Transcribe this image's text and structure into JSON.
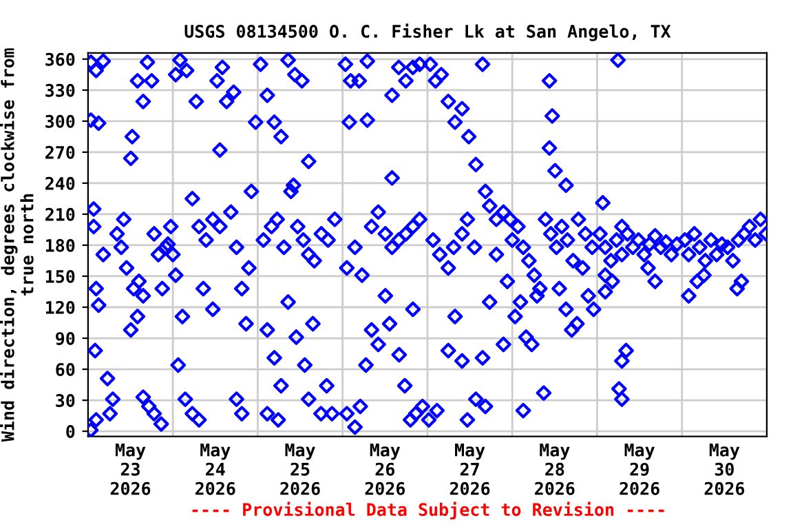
{
  "chart_data": {
    "type": "scatter",
    "title": "USGS 08134500 O. C. Fisher Lk at San Angelo, TX",
    "ylabel": "Wind direction, degrees clockwise from\ntrue north",
    "annotations": [
      "---- Provisional Data Subject to Revision ----"
    ],
    "marker": "diamond",
    "grid": true,
    "legend": false,
    "xlim": [
      "2026-05-23T00:00",
      "2026-05-31T00:00"
    ],
    "xticks": [
      {
        "value": "2026-05-23T00:00",
        "label": null
      },
      {
        "value": "2026-05-23T12:00",
        "label": "May\n23\n2026"
      },
      {
        "value": "2026-05-24T00:00",
        "label": null
      },
      {
        "value": "2026-05-24T12:00",
        "label": "May\n24\n2026"
      },
      {
        "value": "2026-05-25T00:00",
        "label": null
      },
      {
        "value": "2026-05-25T12:00",
        "label": "May\n25\n2026"
      },
      {
        "value": "2026-05-26T00:00",
        "label": null
      },
      {
        "value": "2026-05-26T12:00",
        "label": "May\n26\n2026"
      },
      {
        "value": "2026-05-27T00:00",
        "label": null
      },
      {
        "value": "2026-05-27T12:00",
        "label": "May\n27\n2026"
      },
      {
        "value": "2026-05-28T00:00",
        "label": null
      },
      {
        "value": "2026-05-28T12:00",
        "label": "May\n28\n2026"
      },
      {
        "value": "2026-05-29T00:00",
        "label": null
      },
      {
        "value": "2026-05-29T12:00",
        "label": "May\n29\n2026"
      },
      {
        "value": "2026-05-30T00:00",
        "label": null
      },
      {
        "value": "2026-05-30T12:00",
        "label": "May\n30\n2026"
      },
      {
        "value": "2026-05-31T00:00",
        "label": null
      }
    ],
    "ylim": [
      -5,
      366
    ],
    "yticks": [
      0,
      30,
      60,
      90,
      120,
      150,
      180,
      210,
      240,
      270,
      300,
      330,
      360
    ],
    "series": [
      {
        "color": "#0000ff",
        "x": [
          "2026-05-23T00:48",
          "2026-05-23T02:18",
          "2026-05-23T04:18",
          "2026-05-23T00:48",
          "2026-05-23T03:00",
          "2026-05-23T01:36",
          "2026-05-23T01:36",
          "2026-05-23T02:18",
          "2026-05-23T00:48",
          "2026-05-23T02:18",
          "2026-05-23T02:00",
          "2026-05-23T03:00",
          "2026-05-23T04:18",
          "2026-05-23T05:30",
          "2026-05-23T06:12",
          "2026-05-23T07:00",
          "2026-05-23T08:12",
          "2026-05-23T09:24",
          "2026-05-23T10:06",
          "2026-05-23T10:54",
          "2026-05-23T12:06",
          "2026-05-23T12:54",
          "2026-05-23T14:00",
          "2026-05-23T12:30",
          "2026-05-23T12:06",
          "2026-05-23T14:00",
          "2026-05-23T15:36",
          "2026-05-23T16:48",
          "2026-05-23T18:00",
          "2026-05-23T18:42",
          "2026-05-23T19:54",
          "2026-05-23T22:00",
          "2026-05-23T15:36",
          "2026-05-23T17:12",
          "2026-05-23T18:42",
          "2026-05-23T20:42",
          "2026-05-23T14:24",
          "2026-05-23T15:36",
          "2026-05-23T21:00",
          "2026-05-23T22:36",
          "2026-05-23T23:24",
          "2026-05-24T00:48",
          "2026-05-24T02:00",
          "2026-05-24T03:54",
          "2026-05-24T06:36",
          "2026-05-24T00:00",
          "2026-05-24T00:48",
          "2026-05-24T02:42",
          "2026-05-24T01:30",
          "2026-05-24T03:30",
          "2026-05-24T05:30",
          "2026-05-24T07:24",
          "2026-05-24T05:30",
          "2026-05-24T07:24",
          "2026-05-24T09:24",
          "2026-05-24T11:18",
          "2026-05-24T13:18",
          "2026-05-24T08:36",
          "2026-05-24T11:18",
          "2026-05-24T12:30",
          "2026-05-24T14:00",
          "2026-05-24T13:18",
          "2026-05-24T15:12",
          "2026-05-24T17:12",
          "2026-05-24T16:24",
          "2026-05-24T18:00",
          "2026-05-24T19:30",
          "2026-05-24T21:30",
          "2026-05-24T22:12",
          "2026-05-24T23:24",
          "2026-05-24T20:42",
          "2026-05-24T18:00",
          "2026-05-24T19:30",
          "2026-05-25T00:48",
          "2026-05-25T02:42",
          "2026-05-25T04:42",
          "2026-05-25T06:36",
          "2026-05-25T08:36",
          "2026-05-25T10:30",
          "2026-05-25T12:30",
          "2026-05-25T01:36",
          "2026-05-25T03:54",
          "2026-05-25T05:30",
          "2026-05-25T07:24",
          "2026-05-25T09:24",
          "2026-05-25T11:18",
          "2026-05-25T12:54",
          "2026-05-25T14:24",
          "2026-05-25T16:00",
          "2026-05-25T18:00",
          "2026-05-25T19:54",
          "2026-05-25T21:48",
          "2026-05-25T02:42",
          "2026-05-25T04:42",
          "2026-05-25T06:36",
          "2026-05-25T08:36",
          "2026-05-25T10:54",
          "2026-05-25T13:18",
          "2026-05-25T14:24",
          "2026-05-25T02:42",
          "2026-05-25T05:48",
          "2026-05-25T17:54",
          "2026-05-25T19:30",
          "2026-05-25T15:36",
          "2026-05-25T14:24",
          "2026-05-25T10:06",
          "2026-05-25T21:00",
          "2026-05-26T00:48",
          "2026-05-26T02:18",
          "2026-05-26T04:42",
          "2026-05-26T07:00",
          "2026-05-26T01:54",
          "2026-05-26T07:00",
          "2026-05-26T01:12",
          "2026-05-26T03:30",
          "2026-05-26T05:30",
          "2026-05-26T08:12",
          "2026-05-26T10:06",
          "2026-05-26T12:06",
          "2026-05-26T14:00",
          "2026-05-26T15:54",
          "2026-05-26T17:54",
          "2026-05-26T19:54",
          "2026-05-26T21:48",
          "2026-05-26T01:12",
          "2026-05-26T03:30",
          "2026-05-26T05:00",
          "2026-05-26T06:36",
          "2026-05-26T08:12",
          "2026-05-26T10:06",
          "2026-05-26T12:06",
          "2026-05-26T13:18",
          "2026-05-26T16:00",
          "2026-05-26T17:36",
          "2026-05-26T19:12",
          "2026-05-26T20:42",
          "2026-05-26T22:36",
          "2026-05-26T14:00",
          "2026-05-26T15:54",
          "2026-05-26T17:54",
          "2026-05-26T19:54",
          "2026-05-26T21:48",
          "2026-05-26T14:00",
          "2026-05-26T19:54",
          "2026-05-27T00:48",
          "2026-05-27T02:18",
          "2026-05-27T03:54",
          "2026-05-27T05:54",
          "2026-05-27T07:48",
          "2026-05-27T09:48",
          "2026-05-27T11:42",
          "2026-05-27T13:42",
          "2026-05-27T15:36",
          "2026-05-27T16:24",
          "2026-05-27T17:36",
          "2026-05-27T19:30",
          "2026-05-27T21:30",
          "2026-05-27T23:24",
          "2026-05-27T01:36",
          "2026-05-27T03:30",
          "2026-05-27T05:54",
          "2026-05-27T07:24",
          "2026-05-27T09:48",
          "2026-05-27T11:18",
          "2026-05-27T13:18",
          "2026-05-27T00:24",
          "2026-05-27T02:42",
          "2026-05-27T05:54",
          "2026-05-27T07:48",
          "2026-05-27T09:48",
          "2026-05-27T13:42",
          "2026-05-27T15:36",
          "2026-05-27T17:36",
          "2026-05-27T19:30",
          "2026-05-27T21:30",
          "2026-05-27T22:36",
          "2026-05-27T16:24",
          "2026-05-27T11:18",
          "2026-05-28T00:00",
          "2026-05-28T01:36",
          "2026-05-28T03:06",
          "2026-05-28T04:42",
          "2026-05-28T06:12",
          "2026-05-28T07:48",
          "2026-05-28T09:24",
          "2026-05-28T10:54",
          "2026-05-28T12:30",
          "2026-05-28T14:00",
          "2026-05-28T15:36",
          "2026-05-28T17:12",
          "2026-05-28T18:42",
          "2026-05-28T20:42",
          "2026-05-28T22:36",
          "2026-05-28T00:48",
          "2026-05-28T02:18",
          "2026-05-28T03:54",
          "2026-05-28T05:30",
          "2026-05-28T07:00",
          "2026-05-28T08:54",
          "2026-05-28T03:06",
          "2026-05-28T10:30",
          "2026-05-28T11:18",
          "2026-05-28T10:30",
          "2026-05-28T12:06",
          "2026-05-28T13:18",
          "2026-05-28T15:12",
          "2026-05-28T16:48",
          "2026-05-28T18:18",
          "2026-05-28T19:54",
          "2026-05-28T21:30",
          "2026-05-28T23:00",
          "2026-05-28T15:12",
          "2026-05-29T00:48",
          "2026-05-29T02:18",
          "2026-05-29T03:54",
          "2026-05-29T05:30",
          "2026-05-29T07:00",
          "2026-05-29T08:36",
          "2026-05-29T10:06",
          "2026-05-29T11:42",
          "2026-05-29T13:18",
          "2026-05-29T14:48",
          "2026-05-29T16:24",
          "2026-05-29T18:00",
          "2026-05-29T19:30",
          "2026-05-29T21:00",
          "2026-05-29T22:36",
          "2026-05-29T02:18",
          "2026-05-29T04:18",
          "2026-05-29T01:36",
          "2026-05-29T07:00",
          "2026-05-29T05:54",
          "2026-05-29T06:12",
          "2026-05-29T07:00",
          "2026-05-29T08:12",
          "2026-05-29T07:00",
          "2026-05-29T14:24",
          "2026-05-29T16:24",
          "2026-05-29T02:18",
          "2026-05-30T00:48",
          "2026-05-30T01:54",
          "2026-05-30T03:30",
          "2026-05-30T05:00",
          "2026-05-30T06:36",
          "2026-05-30T08:12",
          "2026-05-30T09:48",
          "2026-05-30T11:18",
          "2026-05-30T12:54",
          "2026-05-30T14:24",
          "2026-05-30T16:00",
          "2026-05-30T17:36",
          "2026-05-30T19:06",
          "2026-05-30T20:42",
          "2026-05-30T22:12",
          "2026-05-30T23:48",
          "2026-05-30T04:18",
          "2026-05-30T06:12",
          "2026-05-30T01:54",
          "2026-05-30T15:36",
          "2026-05-30T16:48"
        ],
        "values": [
          357,
          349,
          358,
          301,
          298,
          215,
          198,
          138,
          1,
          11,
          78,
          122,
          171,
          51,
          17,
          31,
          191,
          178,
          205,
          158,
          98,
          138,
          111,
          285,
          264,
          339,
          319,
          357,
          339,
          191,
          171,
          178,
          33,
          24,
          17,
          7,
          145,
          131,
          138,
          181,
          198,
          345,
          359,
          349,
          319,
          171,
          151,
          111,
          64,
          31,
          17,
          11,
          225,
          198,
          185,
          205,
          198,
          138,
          118,
          339,
          352,
          272,
          319,
          328,
          212,
          178,
          138,
          158,
          232,
          299,
          104,
          31,
          17,
          355,
          325,
          299,
          285,
          359,
          345,
          339,
          185,
          198,
          205,
          178,
          232,
          198,
          185,
          171,
          165,
          191,
          185,
          205,
          98,
          71,
          44,
          125,
          91,
          64,
          31,
          17,
          11,
          17,
          44,
          104,
          261,
          238,
          17,
          355,
          339,
          339,
          358,
          299,
          301,
          158,
          178,
          151,
          198,
          212,
          191,
          178,
          185,
          191,
          198,
          205,
          17,
          4,
          24,
          64,
          98,
          84,
          131,
          104,
          74,
          44,
          11,
          17,
          24,
          325,
          352,
          339,
          352,
          355,
          245,
          118,
          355,
          339,
          345,
          319,
          299,
          312,
          285,
          258,
          355,
          232,
          218,
          205,
          212,
          205,
          185,
          171,
          158,
          178,
          191,
          205,
          178,
          11,
          20,
          78,
          111,
          68,
          31,
          71,
          125,
          171,
          84,
          145,
          24,
          11,
          185,
          198,
          178,
          165,
          151,
          138,
          205,
          191,
          178,
          198,
          185,
          165,
          205,
          191,
          178,
          111,
          125,
          91,
          84,
          131,
          37,
          20,
          339,
          305,
          274,
          252,
          138,
          118,
          98,
          104,
          158,
          131,
          118,
          238,
          191,
          178,
          165,
          185,
          171,
          191,
          178,
          185,
          171,
          181,
          189,
          178,
          183,
          171,
          181,
          151,
          145,
          221,
          68,
          359,
          41,
          31,
          78,
          198,
          158,
          145,
          135,
          185,
          171,
          191,
          178,
          165,
          185,
          171,
          181,
          178,
          165,
          185,
          191,
          198,
          185,
          205,
          191,
          145,
          151,
          131,
          138,
          145
        ]
      }
    ]
  }
}
